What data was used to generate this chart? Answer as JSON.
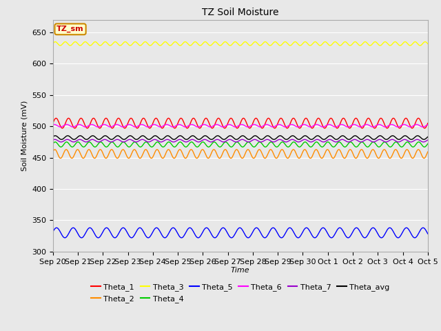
{
  "title": "TZ Soil Moisture",
  "xlabel": "Time",
  "ylabel": "Soil Moisture (mV)",
  "ylim": [
    300,
    670
  ],
  "yticks": [
    300,
    350,
    400,
    450,
    500,
    550,
    600,
    650
  ],
  "date_labels": [
    "Sep 20",
    "Sep 21",
    "Sep 22",
    "Sep 23",
    "Sep 24",
    "Sep 25",
    "Sep 26",
    "Sep 27",
    "Sep 28",
    "Sep 29",
    "Sep 30",
    "Oct 1",
    "Oct 2",
    "Oct 3",
    "Oct 4",
    "Oct 5"
  ],
  "series_order": [
    "Theta_1",
    "Theta_2",
    "Theta_3",
    "Theta_4",
    "Theta_5",
    "Theta_6",
    "Theta_7",
    "Theta_avg"
  ],
  "series": {
    "Theta_1": {
      "color": "#ff0000",
      "base": 505,
      "amp": 8,
      "freq": 2.0,
      "phase": 0.0
    },
    "Theta_2": {
      "color": "#ff8c00",
      "base": 456,
      "amp": 7,
      "freq": 2.2,
      "phase": 0.5
    },
    "Theta_3": {
      "color": "#ffff00",
      "base": 632,
      "amp": 3,
      "freq": 2.5,
      "phase": 0.1
    },
    "Theta_4": {
      "color": "#00cc00",
      "base": 471,
      "amp": 4,
      "freq": 2.2,
      "phase": 0.3
    },
    "Theta_5": {
      "color": "#0000ff",
      "base": 330,
      "amp": 8,
      "freq": 1.5,
      "phase": 0.2
    },
    "Theta_6": {
      "color": "#ff00ff",
      "base": 501,
      "amp": 2,
      "freq": 2.0,
      "phase": 0.9
    },
    "Theta_7": {
      "color": "#9900cc",
      "base": 477,
      "amp": 2,
      "freq": 2.0,
      "phase": 0.6
    },
    "Theta_avg": {
      "color": "#000000",
      "base": 482,
      "amp": 3,
      "freq": 2.0,
      "phase": 0.4
    }
  },
  "legend_box_label": "TZ_sm",
  "legend_box_facecolor": "#ffffcc",
  "legend_box_edgecolor": "#cc8800",
  "fig_facecolor": "#e8e8e8",
  "plot_facecolor": "#e8e8e8",
  "grid_color": "#ffffff",
  "title_fontsize": 10,
  "axis_label_fontsize": 8,
  "tick_fontsize": 8,
  "legend_fontsize": 8
}
